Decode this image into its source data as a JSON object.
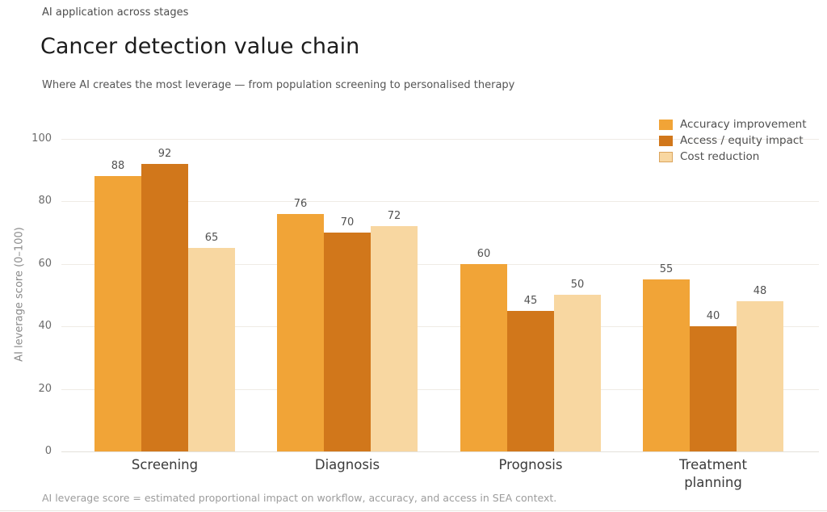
{
  "header": {
    "kicker": "AI application across stages",
    "title": "Cancer detection value chain",
    "subtitle": "Where AI creates the most leverage — from population screening to personalised therapy"
  },
  "chart_data": {
    "type": "bar",
    "categories": [
      "Screening",
      "Diagnosis",
      "Prognosis",
      "Treatment planning"
    ],
    "series": [
      {
        "name": "Accuracy improvement",
        "color": "#F1A437",
        "values": [
          88,
          76,
          60,
          55
        ]
      },
      {
        "name": "Access / equity impact",
        "color": "#D1771B",
        "values": [
          92,
          70,
          45,
          40
        ]
      },
      {
        "name": "Cost reduction",
        "color": "#F8D7A1",
        "legend_border": "#DBA55E",
        "values": [
          65,
          72,
          50,
          48
        ]
      }
    ],
    "title": "Cancer detection value chain",
    "xlabel": "",
    "ylabel": "AI leverage score (0–100)",
    "yticks": [
      0,
      20,
      40,
      60,
      80,
      100
    ],
    "ylim": [
      0,
      100
    ],
    "grid": true,
    "legend_position": "top-right",
    "value_labels": true
  },
  "footer": {
    "note": "AI leverage score = estimated proportional impact on workflow, accuracy, and access in SEA context."
  }
}
